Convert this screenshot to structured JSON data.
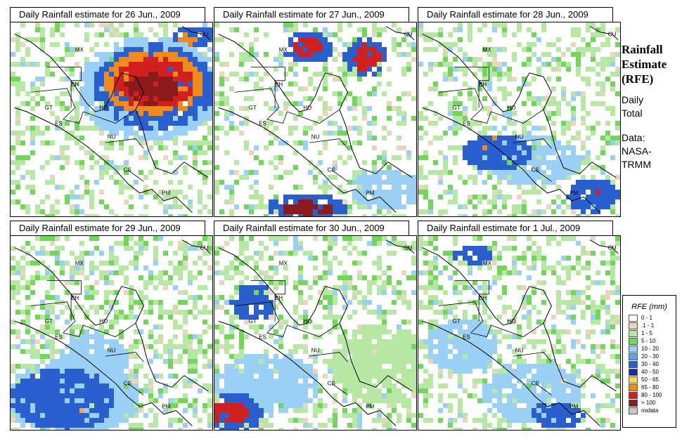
{
  "sidebar": {
    "title": [
      "Rainfall",
      "Estimate",
      "(RFE)"
    ],
    "subtitle": [
      "Daily",
      "Total"
    ],
    "source": [
      "Data:",
      "NASA-",
      "TRMM"
    ]
  },
  "panels": [
    {
      "title": "Daily Rainfall estimate for  26 Jun., 2009",
      "blobs": [
        [
          0.68,
          0.33,
          0.14,
          0.08,
          "#8b1a1a"
        ],
        [
          0.7,
          0.3,
          0.2,
          0.13,
          "#d21f1f"
        ],
        [
          0.7,
          0.3,
          0.25,
          0.17,
          "#f08a1a"
        ],
        [
          0.7,
          0.32,
          0.3,
          0.22,
          "#2a5fd0"
        ],
        [
          0.68,
          0.33,
          0.36,
          0.27,
          "#9ad0f5"
        ],
        [
          0.85,
          0.1,
          0.07,
          0.05,
          "#f08a1a"
        ],
        [
          0.9,
          0.06,
          0.1,
          0.06,
          "#2a5fd0"
        ]
      ],
      "density": 0.35
    },
    {
      "title": "Daily Rainfall estimate for  27 Jun., 2009",
      "blobs": [
        [
          0.45,
          0.11,
          0.07,
          0.05,
          "#d21f1f"
        ],
        [
          0.45,
          0.12,
          0.13,
          0.08,
          "#2a5fd0"
        ],
        [
          0.74,
          0.17,
          0.07,
          0.07,
          "#d21f1f"
        ],
        [
          0.74,
          0.17,
          0.11,
          0.1,
          "#2a5fd0"
        ],
        [
          0.45,
          0.95,
          0.12,
          0.04,
          "#8b1a1a"
        ],
        [
          0.45,
          0.94,
          0.2,
          0.07,
          "#2a5fd0"
        ],
        [
          0.84,
          0.85,
          0.18,
          0.1,
          "#9ad0f5"
        ]
      ],
      "density": 0.3
    },
    {
      "title": "Daily Rainfall estimate for  28 Jun., 2009",
      "blobs": [
        [
          0.38,
          0.66,
          0.18,
          0.09,
          "#2a5fd0"
        ],
        [
          0.55,
          0.7,
          0.24,
          0.13,
          "#9ad0f5"
        ],
        [
          0.85,
          0.88,
          0.13,
          0.09,
          "#2a5fd0"
        ],
        [
          0.88,
          0.9,
          0.05,
          0.04,
          "#d21f1f"
        ],
        [
          0.35,
          0.62,
          0.05,
          0.04,
          "#f08a1a"
        ]
      ],
      "density": 0.4
    },
    {
      "title": "Daily Rainfall estimate for  29 Jun., 2009",
      "blobs": [
        [
          0.25,
          0.83,
          0.26,
          0.16,
          "#2a5fd0"
        ],
        [
          0.3,
          0.82,
          0.33,
          0.2,
          "#9ad0f5"
        ],
        [
          0.3,
          0.85,
          0.07,
          0.05,
          "#f0b030"
        ],
        [
          0.4,
          0.62,
          0.18,
          0.12,
          "#9ad0f5"
        ]
      ],
      "density": 0.45
    },
    {
      "title": "Daily Rainfall estimate for  30 Jun., 2009",
      "blobs": [
        [
          0.06,
          0.9,
          0.09,
          0.06,
          "#d21f1f"
        ],
        [
          0.08,
          0.9,
          0.15,
          0.1,
          "#2a5fd0"
        ],
        [
          0.25,
          0.75,
          0.26,
          0.16,
          "#9ad0f5"
        ],
        [
          0.18,
          0.33,
          0.11,
          0.1,
          "#2a5fd0"
        ],
        [
          0.8,
          0.65,
          0.24,
          0.2,
          "#b6e8a4"
        ]
      ],
      "density": 0.4
    },
    {
      "title": "Daily Rainfall estimate for  1 Jul., 2009",
      "blobs": [
        [
          0.68,
          0.91,
          0.13,
          0.07,
          "#2a5fd0"
        ],
        [
          0.68,
          0.92,
          0.05,
          0.03,
          "#d21f1f"
        ],
        [
          0.55,
          0.8,
          0.25,
          0.16,
          "#9ad0f5"
        ],
        [
          0.26,
          0.08,
          0.1,
          0.05,
          "#2a5fd0"
        ],
        [
          0.2,
          0.55,
          0.18,
          0.14,
          "#9ad0f5"
        ]
      ],
      "density": 0.4
    }
  ],
  "map_labels": {
    "mx": "MX",
    "bh": "BH",
    "gt": "GT",
    "ho": "HO",
    "es": "ES",
    "nu": "NU",
    "cs": "CS",
    "pm": "PM",
    "cu": "CU"
  },
  "legend": {
    "title": "RFE (mm)",
    "items": [
      {
        "label": "0 - 1",
        "color": "#ffffff"
      },
      {
        "label": ".1 - 1",
        "color": "#e8d7be"
      },
      {
        "label": "1 - 5",
        "color": "#b6e8a4"
      },
      {
        "label": "5 - 10",
        "color": "#72d65a"
      },
      {
        "label": "10 - 20",
        "color": "#9ad0f5"
      },
      {
        "label": "20 - 30",
        "color": "#5ba7ef"
      },
      {
        "label": "30 - 40",
        "color": "#2a5fd0"
      },
      {
        "label": "40 - 50",
        "color": "#1c2e9c"
      },
      {
        "label": "50 - 65",
        "color": "#f6d85a"
      },
      {
        "label": "65 - 80",
        "color": "#f08a1a"
      },
      {
        "label": "80 - 100",
        "color": "#d21f1f"
      },
      {
        "label": "> 100",
        "color": "#8b1a1a"
      },
      {
        "label": "nodata",
        "color": "#c8c8c8"
      }
    ]
  }
}
